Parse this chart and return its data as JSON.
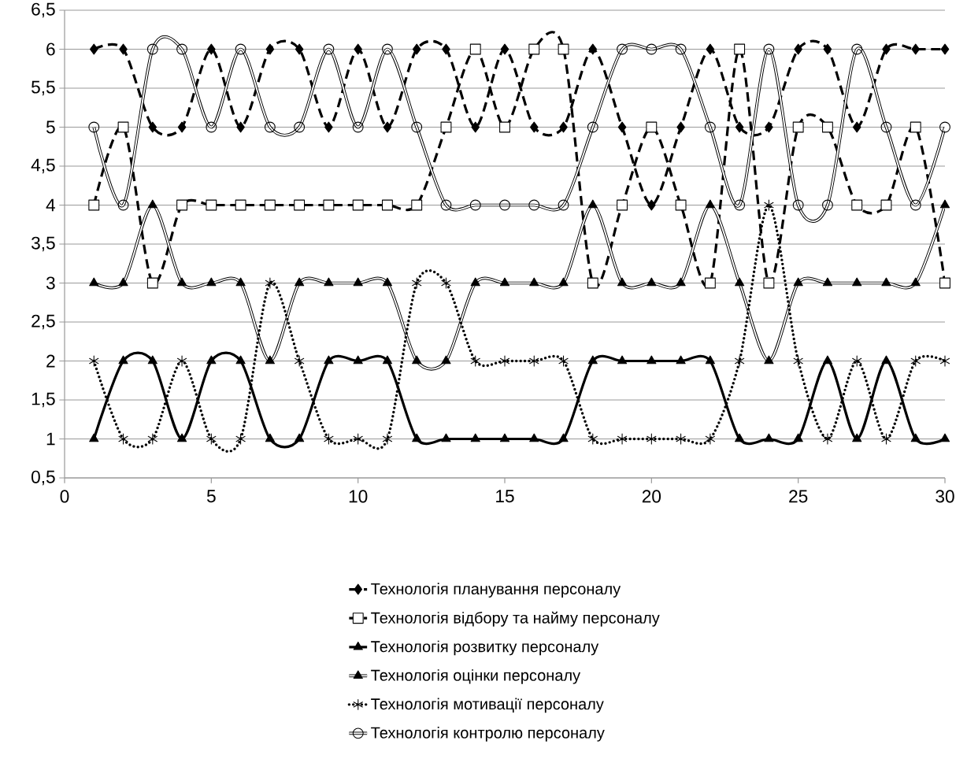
{
  "chart_data": {
    "type": "line",
    "xlim": [
      0,
      30
    ],
    "xticks": [
      0,
      5,
      10,
      15,
      20,
      25,
      30
    ],
    "ylim": [
      0.5,
      6.5
    ],
    "yticks": [
      {
        "value": 0.5,
        "label": "0,5"
      },
      1,
      {
        "value": 1.5,
        "label": "1,5"
      },
      2,
      {
        "value": 2.5,
        "label": "2,5"
      },
      3,
      {
        "value": 3.5,
        "label": "3,5"
      },
      4,
      {
        "value": 4.5,
        "label": "4,5"
      },
      5,
      {
        "value": 5.5,
        "label": "5,5"
      },
      6,
      {
        "value": 6.5,
        "label": "6,5"
      }
    ],
    "x": [
      1,
      2,
      3,
      4,
      5,
      6,
      7,
      8,
      9,
      10,
      11,
      12,
      13,
      14,
      15,
      16,
      17,
      18,
      19,
      20,
      21,
      22,
      23,
      24,
      25,
      26,
      27,
      28,
      29,
      30
    ],
    "grid": "y",
    "legend": "bottom",
    "series": [
      {
        "name": "Технологія планування персоналу",
        "color": "#000000",
        "marker": "diamond",
        "line_style": "dashed",
        "values": [
          6,
          6,
          5,
          5,
          6,
          5,
          6,
          6,
          5,
          6,
          5,
          6,
          6,
          5,
          6,
          5,
          5,
          6,
          5,
          4,
          5,
          6,
          5,
          5,
          6,
          6,
          5,
          6,
          6,
          6
        ]
      },
      {
        "name": "Технологія відбору та найму персоналу",
        "color": "#000000",
        "marker": "square",
        "line_style": "dashed",
        "values": [
          4,
          5,
          3,
          4,
          4,
          4,
          4,
          4,
          4,
          4,
          4,
          4,
          5,
          6,
          5,
          6,
          6,
          3,
          4,
          5,
          4,
          3,
          6,
          3,
          5,
          5,
          4,
          4,
          5,
          3
        ]
      },
      {
        "name": "Технологія розвитку персоналу",
        "color": "#000000",
        "marker": "triangle",
        "line_style": "solid",
        "values": [
          1,
          2,
          2,
          1,
          2,
          2,
          1,
          1,
          2,
          2,
          2,
          1,
          1,
          1,
          1,
          1,
          1,
          2,
          2,
          2,
          2,
          2,
          1,
          1,
          1,
          2,
          1,
          2,
          1,
          1
        ]
      },
      {
        "name": "Технологія оцінки персоналу",
        "color": "#000000",
        "marker": "triangle",
        "line_style": "solid",
        "values": [
          3,
          3,
          4,
          3,
          3,
          3,
          2,
          3,
          3,
          3,
          3,
          2,
          2,
          3,
          3,
          3,
          3,
          4,
          3,
          3,
          3,
          4,
          3,
          2,
          3,
          3,
          3,
          3,
          3,
          4
        ]
      },
      {
        "name": "Технологія мотивації персоналу",
        "color": "#000000",
        "marker": "cross",
        "line_style": "dotted",
        "values": [
          2,
          1,
          1,
          2,
          1,
          1,
          3,
          2,
          1,
          1,
          1,
          3,
          3,
          2,
          2,
          2,
          2,
          1,
          1,
          1,
          1,
          1,
          2,
          4,
          2,
          1,
          2,
          1,
          2,
          2
        ]
      },
      {
        "name": "Технологія контролю персоналу",
        "color": "#000000",
        "marker": "circle",
        "line_style": "solid",
        "values": [
          5,
          4,
          6,
          6,
          5,
          6,
          5,
          5,
          6,
          5,
          6,
          5,
          4,
          4,
          4,
          4,
          4,
          5,
          6,
          6,
          6,
          5,
          4,
          6,
          4,
          4,
          6,
          5,
          4,
          5
        ]
      }
    ]
  }
}
